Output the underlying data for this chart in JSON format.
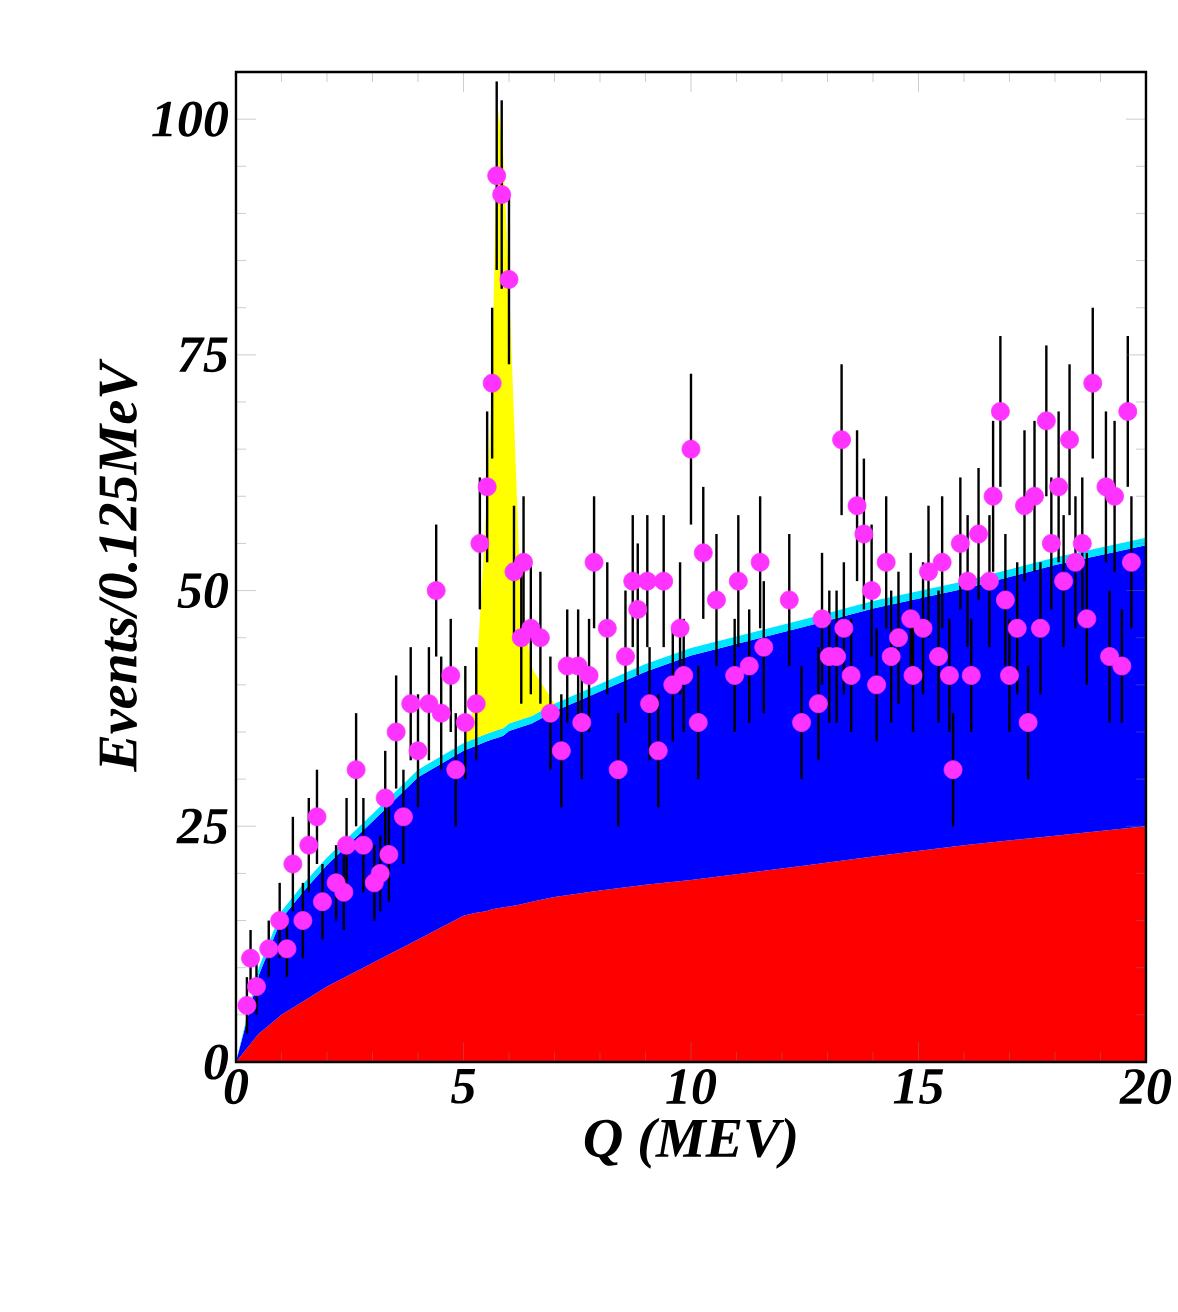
{
  "chart_data": {
    "type": "area",
    "stacked": true,
    "xlabel": "Q (MEV)",
    "ylabel": "Events/0.125MeV",
    "xlim": [
      0,
      20
    ],
    "ylim": [
      0,
      105
    ],
    "xticks": [
      0,
      5,
      10,
      15,
      20
    ],
    "yticks": [
      0,
      25,
      50,
      75,
      100
    ],
    "x": [
      0,
      0.5,
      1,
      1.5,
      2,
      3,
      4,
      5,
      5.25,
      5.5,
      5.625,
      5.75,
      5.875,
      6,
      6.25,
      6.5,
      7,
      8,
      9,
      10,
      12.6,
      14,
      16,
      18,
      20
    ],
    "series": [
      {
        "color": "#ff0000",
        "values": [
          0,
          3,
          5,
          6.5,
          8,
          10.5,
          13,
          15.5,
          15.8,
          16,
          16.2,
          16.3,
          16.4,
          16.5,
          16.7,
          17,
          17.5,
          18.2,
          18.8,
          19.3,
          20.9,
          21.8,
          23,
          24,
          25
        ]
      },
      {
        "color": "#0000ff",
        "values": [
          0,
          6.2,
          10.2,
          11.7,
          12.9,
          15,
          17.2,
          17.5,
          17.7,
          18,
          18,
          18.1,
          18.2,
          18.6,
          18.8,
          18.9,
          19.7,
          21.1,
          22.6,
          23.8,
          25.4,
          26.3,
          27.2,
          28.7,
          29.8
        ]
      },
      {
        "color": "#00e5ff",
        "values": [
          0,
          0.8,
          0.8,
          0.8,
          0.8,
          0.8,
          0.8,
          0.8,
          0.8,
          0.8,
          0.8,
          0.8,
          0.8,
          0.8,
          0.8,
          0.8,
          0.8,
          0.8,
          0.8,
          0.8,
          0.8,
          0.8,
          0.8,
          0.8,
          0.8
        ]
      },
      {
        "color": "#ffff00",
        "values": [
          0,
          0,
          0,
          0,
          0,
          0,
          0,
          0,
          3.7,
          23.7,
          36.8,
          66.3,
          60.6,
          46.8,
          13.7,
          5.1,
          0,
          0,
          0,
          0,
          0,
          0,
          0,
          0,
          0
        ]
      },
      {
        "type": "scatter",
        "color": "#ff33ff",
        "x": [
          0.24,
          0.32,
          0.45,
          0.72,
          0.96,
          1.12,
          1.25,
          1.47,
          1.6,
          1.78,
          1.9,
          2.2,
          2.37,
          2.43,
          2.64,
          2.8,
          3.04,
          3.17,
          3.28,
          3.36,
          3.52,
          3.68,
          3.84,
          4.0,
          4.24,
          4.4,
          4.51,
          4.72,
          4.83,
          5.04,
          5.28,
          5.36,
          5.52,
          5.63,
          5.73,
          5.84,
          6.0,
          6.11,
          6.27,
          6.32,
          6.48,
          6.69,
          6.91,
          7.15,
          7.28,
          7.52,
          7.6,
          7.76,
          7.87,
          8.16,
          8.4,
          8.56,
          8.72,
          8.83,
          9.04,
          9.09,
          9.28,
          9.4,
          9.6,
          9.76,
          9.84,
          10.0,
          10.16,
          10.27,
          10.56,
          10.96,
          11.04,
          11.28,
          11.52,
          11.6,
          12.16,
          12.43,
          12.8,
          12.88,
          13.04,
          13.2,
          13.31,
          13.36,
          13.52,
          13.65,
          13.8,
          13.97,
          14.08,
          14.29,
          14.4,
          14.56,
          14.83,
          14.88,
          15.1,
          15.22,
          15.44,
          15.52,
          15.68,
          15.76,
          15.92,
          16.08,
          16.16,
          16.32,
          16.56,
          16.64,
          16.8,
          16.91,
          17.0,
          17.17,
          17.33,
          17.41,
          17.55,
          17.68,
          17.81,
          17.92,
          18.08,
          18.19,
          18.32,
          18.45,
          18.6,
          18.7,
          18.83,
          19.12,
          19.2,
          19.31,
          19.47,
          19.6,
          19.68
        ],
        "values": [
          6,
          11,
          8,
          12,
          15,
          12,
          21,
          15,
          23,
          26,
          17,
          19,
          18,
          23,
          31,
          23,
          19,
          20,
          28,
          22,
          35,
          26,
          38,
          33,
          38,
          50,
          37,
          41,
          31,
          36,
          38,
          55,
          61,
          72,
          94,
          92,
          83,
          52,
          45,
          53,
          46,
          45,
          37,
          33,
          42,
          42,
          36,
          41,
          53,
          46,
          31,
          43,
          51,
          48,
          51,
          38,
          33,
          51,
          40,
          46,
          41,
          65,
          36,
          54,
          49,
          41,
          51,
          42,
          53,
          44,
          49,
          36,
          38,
          47,
          43,
          43,
          66,
          46,
          41,
          59,
          56,
          50,
          40,
          53,
          43,
          45,
          47,
          41,
          46,
          52,
          43,
          53,
          41,
          31,
          55,
          51,
          41,
          56,
          51,
          60,
          69,
          49,
          41,
          46,
          59,
          36,
          60,
          46,
          68,
          55,
          61,
          51,
          66,
          53,
          55,
          47,
          72,
          61,
          43,
          60,
          42,
          69,
          53
        ],
        "errors": [
          3,
          3,
          3,
          3,
          4,
          3,
          5,
          4,
          5,
          5,
          4,
          4,
          4,
          5,
          6,
          5,
          4,
          4,
          5,
          5,
          6,
          5,
          6,
          6,
          6,
          7,
          6,
          6,
          6,
          6,
          6,
          7,
          8,
          8,
          10,
          10,
          9,
          7,
          7,
          7,
          7,
          7,
          6,
          6,
          6,
          6,
          6,
          6,
          7,
          7,
          6,
          7,
          7,
          7,
          7,
          6,
          6,
          7,
          6,
          7,
          6,
          8,
          6,
          7,
          7,
          6,
          7,
          6,
          7,
          7,
          7,
          6,
          6,
          7,
          7,
          7,
          8,
          7,
          6,
          8,
          8,
          7,
          6,
          7,
          7,
          7,
          7,
          6,
          7,
          7,
          7,
          7,
          6,
          6,
          7,
          7,
          6,
          7,
          7,
          8,
          8,
          7,
          6,
          7,
          8,
          6,
          8,
          7,
          8,
          7,
          8,
          7,
          8,
          7,
          7,
          7,
          8,
          8,
          7,
          8,
          6,
          8,
          7
        ]
      }
    ]
  }
}
